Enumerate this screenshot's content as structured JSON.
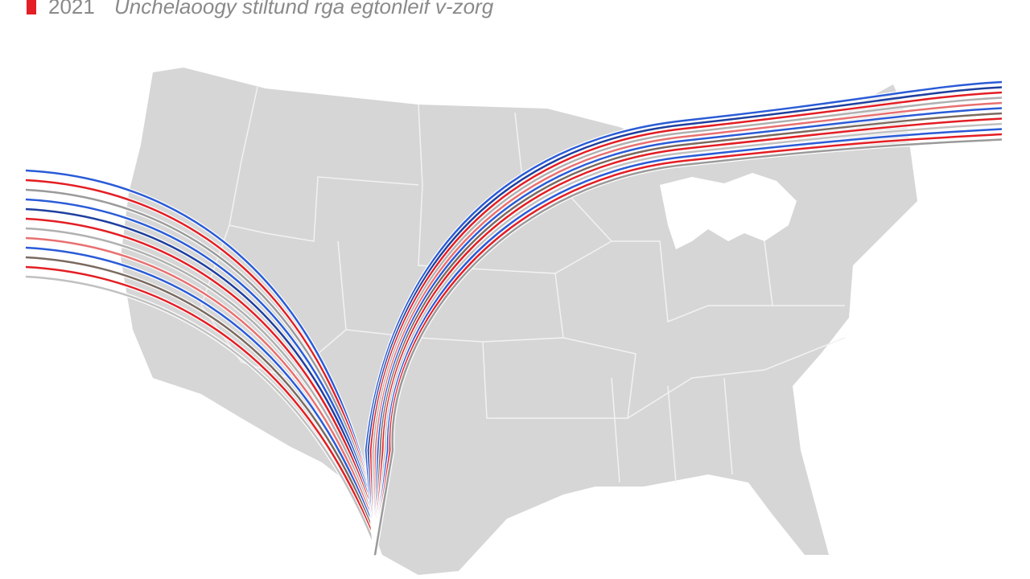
{
  "header": {
    "year": "2021",
    "title": "Unchelaoogy stiltund rga egtonleif v-zorg"
  }
}
